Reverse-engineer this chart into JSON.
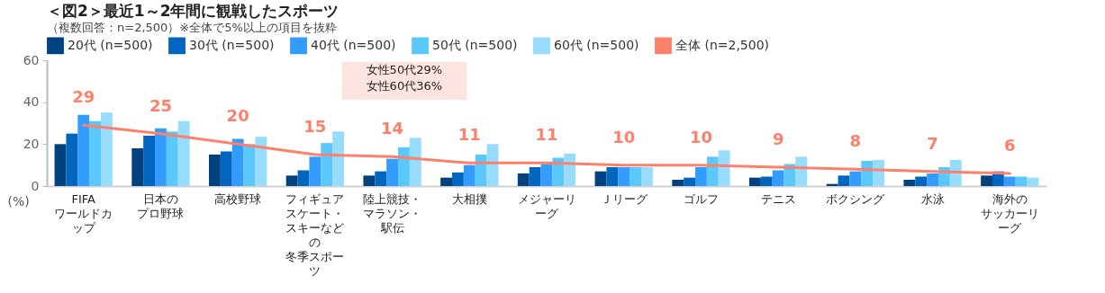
{
  "chart_data": {
    "type": "bar",
    "title": "＜図2＞最近1～2年間に観戦したスポーツ",
    "subtitle": "（複数回答：n=2,500）※全体で5%以上の項目を抜粋",
    "ylabel": "(%)",
    "categories": [
      "FIFAワールドカップ",
      "日本のプロ野球",
      "高校野球",
      "フィギュアスケート・スキーなどの冬季スポーツ",
      "陸上競技・マラソン・駅伝",
      "大相撲",
      "メジャーリーグ",
      "Ｊリーグ",
      "ゴルフ",
      "テニス",
      "ボクシング",
      "水泳",
      "海外のサッカーリーグ"
    ],
    "series": [
      {
        "name": "20代 (n=500)",
        "color": "#00427f",
        "values": [
          20,
          18,
          15,
          5,
          5,
          4,
          6,
          7,
          3,
          4,
          1,
          3,
          5
        ]
      },
      {
        "name": "30代 (n=500)",
        "color": "#0066c0",
        "values": [
          25,
          24,
          16.5,
          7.5,
          7,
          6.5,
          9,
          9,
          4,
          4.5,
          5,
          4.5,
          7
        ]
      },
      {
        "name": "40代 (n=500)",
        "color": "#339cff",
        "values": [
          34,
          27.5,
          22.5,
          14,
          13,
          10,
          10.5,
          9,
          9,
          7.5,
          7,
          6,
          4.5
        ]
      },
      {
        "name": "50代 (n=500)",
        "color": "#5bc8fb",
        "values": [
          31,
          26,
          20,
          20.5,
          18.5,
          15,
          13.5,
          9,
          14,
          10.5,
          12,
          9,
          4.5
        ]
      },
      {
        "name": "60代 (n=500)",
        "color": "#97dbfd",
        "values": [
          35,
          31,
          23.5,
          26,
          23,
          20,
          15.5,
          9,
          17,
          14,
          12.5,
          12.5,
          4
        ]
      },
      {
        "name": "全体 (n=2,500)",
        "type": "line",
        "color": "#ff806a",
        "values": [
          29,
          25,
          20,
          15,
          14,
          11,
          11,
          10,
          10,
          9,
          8,
          7,
          6
        ],
        "value_labels": [
          "29",
          "25",
          "20",
          "15",
          "14",
          "11",
          "11",
          "10",
          "10",
          "9",
          "8",
          "7",
          "6"
        ]
      }
    ],
    "annotations": [
      "女性50代29%\n女性60代36%"
    ],
    "ylim": [
      0,
      60
    ],
    "yticks": [
      0,
      20,
      40,
      60
    ],
    "grid": false,
    "legend": "top"
  }
}
